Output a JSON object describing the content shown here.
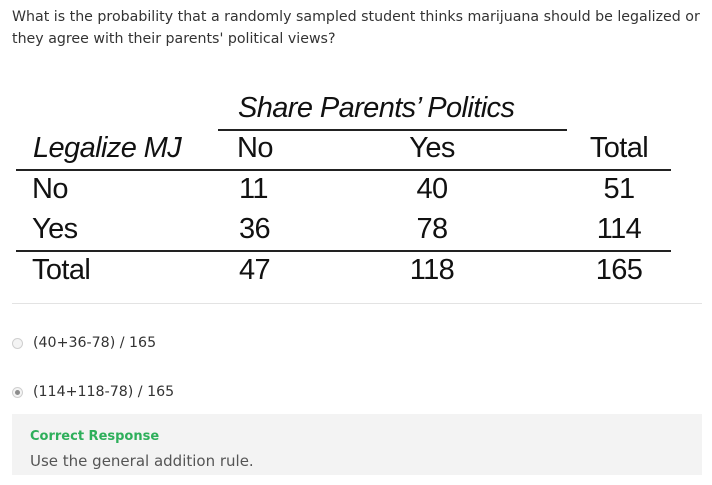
{
  "question": {
    "text": "What is the probability that a randomly sampled student thinks marijuana should be legalized or they agree with their parents' political views?"
  },
  "table": {
    "col_group_title": "Share Parents’ Politics",
    "row_header": "Legalize MJ",
    "col_headers": {
      "no": "No",
      "yes": "Yes",
      "total": "Total"
    },
    "rows": [
      {
        "label": "No",
        "no": "11",
        "yes": "40",
        "total": "51"
      },
      {
        "label": "Yes",
        "no": "36",
        "yes": "78",
        "total": "114"
      },
      {
        "label": "Total",
        "no": "47",
        "yes": "118",
        "total": "165"
      }
    ]
  },
  "options": [
    {
      "label": "(40+36-78) / 165",
      "selected": false
    },
    {
      "label": "(114+118-78) / 165",
      "selected": true
    }
  ],
  "feedback": {
    "title": "Correct Response",
    "text": "Use the general addition rule.",
    "title_color": "#2eaf5b"
  }
}
